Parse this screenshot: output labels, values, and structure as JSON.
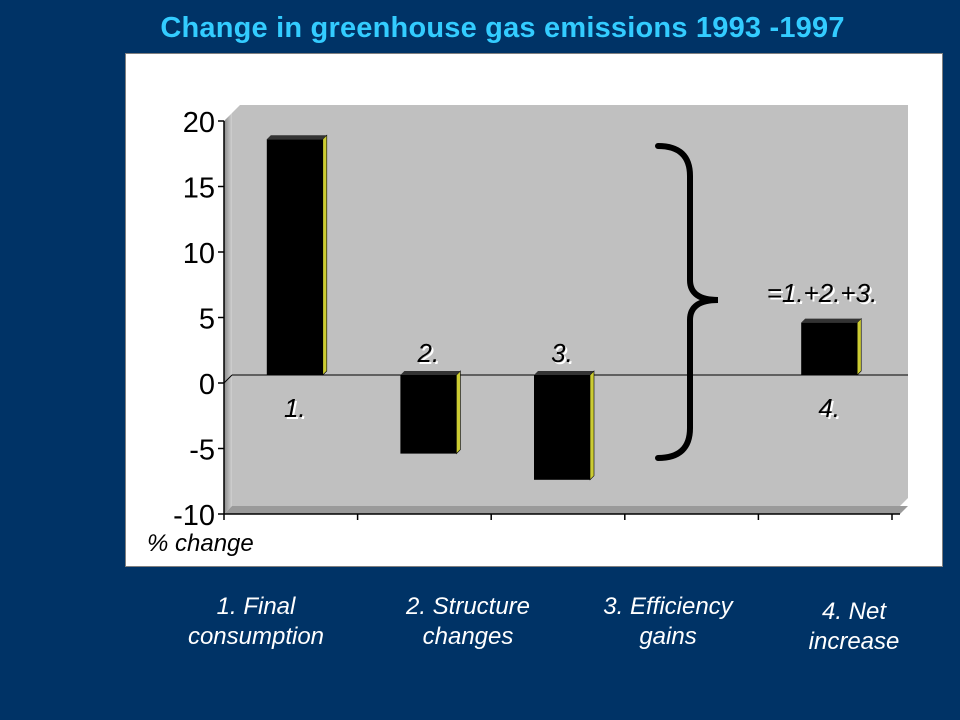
{
  "chart_data": {
    "type": "bar",
    "title": "Change in greenhouse gas emissions 1993 -1997",
    "ylabel": "% change",
    "ylim": [
      -10,
      20
    ],
    "yticks": [
      20,
      15,
      10,
      5,
      0,
      -5,
      -10
    ],
    "categories": [
      "1. Final\nconsumption",
      "2. Structure\nchanges",
      "3. Efficiency\ngains",
      "4. Net\nincrease"
    ],
    "values": [
      18,
      -6,
      -8,
      4
    ],
    "bar_labels": [
      "1.",
      "2.",
      "3.",
      "4."
    ],
    "annotation": "=1.+2.+3.",
    "grid": false,
    "colors": {
      "background": "#003366",
      "title": "#33ccff",
      "plot_area": "#c0c0c0",
      "bar": "#000000",
      "bar_side": "#cccc33",
      "frame": "#ffffff"
    }
  }
}
